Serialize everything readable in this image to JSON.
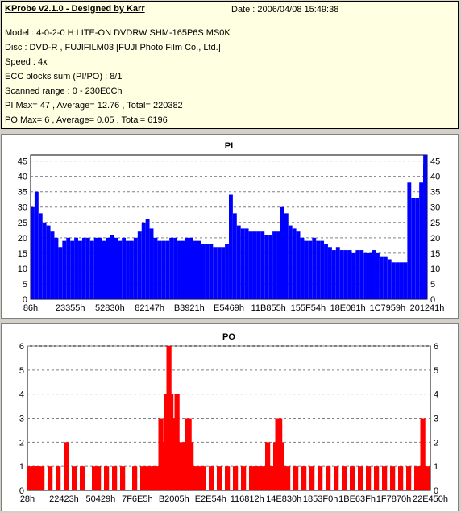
{
  "header": {
    "title": "KProbe v2.1.0 - Designed by Karr",
    "date": "Date : 2006/04/08 15:49:38",
    "lines": [
      "Model : 4-0-2-0 H:LITE-ON DVDRW SHM-165P6S MS0K",
      "Disc : DVD-R , FUJIFILM03 [FUJI Photo Film Co., Ltd.]",
      "Speed : 4x",
      "ECC blocks sum (PI/PO) : 8/1",
      "Scanned range : 0 - 230E0Ch",
      "PI Max= 47 , Average= 12.76 , Total= 220382",
      "PO Max= 6 , Average= 0.05 , Total= 6196"
    ]
  },
  "colors": {
    "bar": "#0000ff",
    "po_bar": "#ff0000",
    "grid": "#808080",
    "bg": "#ffffff"
  },
  "chart_data": [
    {
      "type": "bar",
      "title": "PI",
      "ylim": [
        0,
        47
      ],
      "y_ticks": [
        0,
        5,
        10,
        15,
        20,
        25,
        30,
        35,
        40,
        45
      ],
      "x_tick_labels": [
        "86h",
        "23355h",
        "52830h",
        "82147h",
        "B3921h",
        "E5469h",
        "11B855h",
        "155F54h",
        "18E081h",
        "1C7959h",
        "201241h"
      ],
      "x_range": [
        0,
        1
      ],
      "series": [
        {
          "values": [
            [
              0.0,
              30
            ],
            [
              0.01,
              35
            ],
            [
              0.02,
              28
            ],
            [
              0.03,
              25
            ],
            [
              0.04,
              24
            ],
            [
              0.05,
              22
            ],
            [
              0.06,
              20
            ],
            [
              0.07,
              17
            ],
            [
              0.08,
              19
            ],
            [
              0.09,
              20
            ],
            [
              0.1,
              19
            ],
            [
              0.11,
              20
            ],
            [
              0.12,
              19
            ],
            [
              0.13,
              20
            ],
            [
              0.14,
              20
            ],
            [
              0.15,
              19
            ],
            [
              0.16,
              20
            ],
            [
              0.17,
              20
            ],
            [
              0.18,
              19
            ],
            [
              0.19,
              20
            ],
            [
              0.2,
              21
            ],
            [
              0.21,
              20
            ],
            [
              0.22,
              19
            ],
            [
              0.23,
              20
            ],
            [
              0.24,
              19
            ],
            [
              0.25,
              19
            ],
            [
              0.26,
              20
            ],
            [
              0.27,
              22
            ],
            [
              0.28,
              25
            ],
            [
              0.29,
              26
            ],
            [
              0.3,
              23
            ],
            [
              0.31,
              20
            ],
            [
              0.32,
              19
            ],
            [
              0.33,
              19
            ],
            [
              0.34,
              19
            ],
            [
              0.35,
              20
            ],
            [
              0.36,
              20
            ],
            [
              0.37,
              19
            ],
            [
              0.38,
              19
            ],
            [
              0.39,
              20
            ],
            [
              0.4,
              20
            ],
            [
              0.41,
              19
            ],
            [
              0.42,
              19
            ],
            [
              0.43,
              18
            ],
            [
              0.44,
              18
            ],
            [
              0.45,
              18
            ],
            [
              0.46,
              17
            ],
            [
              0.47,
              17
            ],
            [
              0.48,
              17
            ],
            [
              0.49,
              18
            ],
            [
              0.5,
              34
            ],
            [
              0.51,
              28
            ],
            [
              0.52,
              24
            ],
            [
              0.53,
              23
            ],
            [
              0.54,
              23
            ],
            [
              0.55,
              22
            ],
            [
              0.56,
              22
            ],
            [
              0.57,
              22
            ],
            [
              0.58,
              22
            ],
            [
              0.59,
              21
            ],
            [
              0.6,
              21
            ],
            [
              0.61,
              22
            ],
            [
              0.62,
              22
            ],
            [
              0.63,
              30
            ],
            [
              0.64,
              28
            ],
            [
              0.65,
              24
            ],
            [
              0.66,
              23
            ],
            [
              0.67,
              22
            ],
            [
              0.68,
              20
            ],
            [
              0.69,
              19
            ],
            [
              0.7,
              19
            ],
            [
              0.71,
              20
            ],
            [
              0.72,
              19
            ],
            [
              0.73,
              19
            ],
            [
              0.74,
              18
            ],
            [
              0.75,
              17
            ],
            [
              0.76,
              16
            ],
            [
              0.77,
              17
            ],
            [
              0.78,
              16
            ],
            [
              0.79,
              16
            ],
            [
              0.8,
              16
            ],
            [
              0.81,
              15
            ],
            [
              0.82,
              16
            ],
            [
              0.83,
              16
            ],
            [
              0.84,
              15
            ],
            [
              0.85,
              15
            ],
            [
              0.86,
              16
            ],
            [
              0.87,
              15
            ],
            [
              0.88,
              14
            ],
            [
              0.89,
              14
            ],
            [
              0.9,
              13
            ],
            [
              0.91,
              12
            ],
            [
              0.92,
              12
            ],
            [
              0.93,
              12
            ],
            [
              0.94,
              12
            ],
            [
              0.95,
              38
            ],
            [
              0.96,
              33
            ],
            [
              0.97,
              33
            ],
            [
              0.98,
              38
            ],
            [
              0.99,
              44
            ],
            [
              1.0,
              47
            ]
          ]
        }
      ]
    },
    {
      "type": "bar",
      "title": "PO",
      "ylim": [
        0,
        6
      ],
      "y_ticks": [
        0,
        1,
        2,
        3,
        4,
        5,
        6
      ],
      "x_tick_labels": [
        "28h",
        "22423h",
        "50429h",
        "7F6E5h",
        "B2005h",
        "E2E54h",
        "116812h",
        "14E830h",
        "1853F0h",
        "1BE63Fh",
        "1F7870h",
        "22E450h"
      ],
      "x_range": [
        0,
        1
      ],
      "series": [
        {
          "values": [
            [
              0.0,
              1
            ],
            [
              0.01,
              1
            ],
            [
              0.015,
              1
            ],
            [
              0.02,
              1
            ],
            [
              0.03,
              1
            ],
            [
              0.05,
              1
            ],
            [
              0.07,
              1
            ],
            [
              0.09,
              2
            ],
            [
              0.11,
              1
            ],
            [
              0.13,
              1
            ],
            [
              0.16,
              1
            ],
            [
              0.17,
              1
            ],
            [
              0.19,
              1
            ],
            [
              0.21,
              1
            ],
            [
              0.23,
              1
            ],
            [
              0.26,
              1
            ],
            [
              0.28,
              1
            ],
            [
              0.29,
              1
            ],
            [
              0.3,
              1
            ],
            [
              0.31,
              1
            ],
            [
              0.32,
              1
            ],
            [
              0.325,
              3
            ],
            [
              0.33,
              2
            ],
            [
              0.335,
              1
            ],
            [
              0.34,
              4
            ],
            [
              0.343,
              3
            ],
            [
              0.345,
              6
            ],
            [
              0.35,
              4
            ],
            [
              0.355,
              3
            ],
            [
              0.36,
              3
            ],
            [
              0.365,
              4
            ],
            [
              0.37,
              2
            ],
            [
              0.375,
              1
            ],
            [
              0.38,
              2
            ],
            [
              0.385,
              1
            ],
            [
              0.39,
              3
            ],
            [
              0.395,
              3
            ],
            [
              0.4,
              2
            ],
            [
              0.405,
              1
            ],
            [
              0.41,
              1
            ],
            [
              0.42,
              1
            ],
            [
              0.43,
              1
            ],
            [
              0.45,
              1
            ],
            [
              0.47,
              1
            ],
            [
              0.49,
              1
            ],
            [
              0.51,
              1
            ],
            [
              0.53,
              1
            ],
            [
              0.55,
              1
            ],
            [
              0.56,
              1
            ],
            [
              0.57,
              1
            ],
            [
              0.58,
              1
            ],
            [
              0.59,
              2
            ],
            [
              0.6,
              1
            ],
            [
              0.605,
              1
            ],
            [
              0.61,
              2
            ],
            [
              0.615,
              3
            ],
            [
              0.62,
              3
            ],
            [
              0.625,
              2
            ],
            [
              0.63,
              1
            ],
            [
              0.64,
              1
            ],
            [
              0.66,
              1
            ],
            [
              0.68,
              1
            ],
            [
              0.7,
              1
            ],
            [
              0.72,
              1
            ],
            [
              0.74,
              1
            ],
            [
              0.76,
              1
            ],
            [
              0.78,
              1
            ],
            [
              0.8,
              1
            ],
            [
              0.82,
              1
            ],
            [
              0.84,
              1
            ],
            [
              0.86,
              1
            ],
            [
              0.88,
              1
            ],
            [
              0.9,
              1
            ],
            [
              0.92,
              1
            ],
            [
              0.94,
              1
            ],
            [
              0.96,
              1
            ],
            [
              0.97,
              1
            ],
            [
              0.975,
              3
            ],
            [
              0.98,
              1
            ],
            [
              0.99,
              1
            ]
          ]
        }
      ]
    }
  ]
}
